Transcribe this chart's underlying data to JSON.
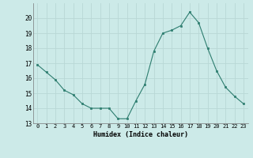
{
  "x": [
    0,
    1,
    2,
    3,
    4,
    5,
    6,
    7,
    8,
    9,
    10,
    11,
    12,
    13,
    14,
    15,
    16,
    17,
    18,
    19,
    20,
    21,
    22,
    23
  ],
  "y": [
    16.9,
    16.4,
    15.9,
    15.2,
    14.9,
    14.3,
    14.0,
    14.0,
    14.0,
    13.3,
    13.3,
    14.5,
    15.6,
    17.8,
    19.0,
    19.2,
    19.5,
    20.4,
    19.7,
    18.0,
    16.5,
    15.4,
    14.8,
    14.3
  ],
  "line_color": "#2d7d6f",
  "marker_color": "#2d7d6f",
  "bg_color": "#cceae8",
  "grid_color": "#b8d8d5",
  "xlabel": "Humidex (Indice chaleur)",
  "ylim": [
    13,
    21
  ],
  "xlim": [
    -0.5,
    23.5
  ],
  "yticks": [
    13,
    14,
    15,
    16,
    17,
    18,
    19,
    20
  ],
  "xticks": [
    0,
    1,
    2,
    3,
    4,
    5,
    6,
    7,
    8,
    9,
    10,
    11,
    12,
    13,
    14,
    15,
    16,
    17,
    18,
    19,
    20,
    21,
    22,
    23
  ],
  "xtick_labels": [
    "0",
    "1",
    "2",
    "3",
    "4",
    "5",
    "6",
    "7",
    "8",
    "9",
    "10",
    "11",
    "12",
    "13",
    "14",
    "15",
    "16",
    "17",
    "18",
    "19",
    "20",
    "21",
    "22",
    "23"
  ]
}
